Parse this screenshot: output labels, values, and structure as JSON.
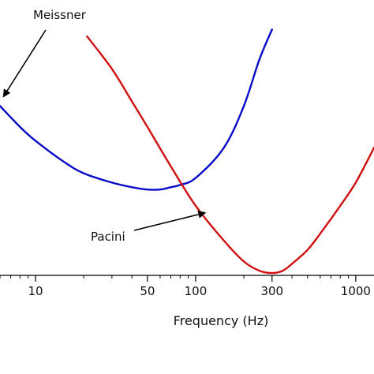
{
  "chart_data": {
    "type": "line",
    "x_scale": "log",
    "xlabel": "Frequency (Hz)",
    "ylabel": "",
    "xlim": [
      6,
      1300
    ],
    "ylim": [
      0,
      1
    ],
    "grid": false,
    "legend": "none",
    "x_ticks": [
      {
        "value": 10,
        "label": "10"
      },
      {
        "value": 50,
        "label": "50"
      },
      {
        "value": 100,
        "label": "100"
      },
      {
        "value": 300,
        "label": "300"
      },
      {
        "value": 1000,
        "label": "1000"
      }
    ],
    "series": [
      {
        "name": "Meissner",
        "color": "#0a0ac8",
        "x": [
          6,
          8,
          10,
          15,
          20,
          30,
          40,
          50,
          60,
          70,
          80,
          100,
          150,
          200,
          250,
          300
        ],
        "y": [
          0.73,
          0.64,
          0.58,
          0.49,
          0.44,
          0.4,
          0.38,
          0.37,
          0.37,
          0.38,
          0.39,
          0.42,
          0.55,
          0.73,
          0.93,
          1.06
        ]
      },
      {
        "name": "Pacini",
        "color": "#d01010",
        "x": [
          21,
          30,
          40,
          50,
          70,
          100,
          150,
          200,
          250,
          300,
          350,
          400,
          500,
          600,
          800,
          1000,
          1300
        ],
        "y": [
          1.03,
          0.89,
          0.75,
          0.64,
          0.47,
          0.3,
          0.15,
          0.06,
          0.02,
          0.01,
          0.02,
          0.05,
          0.11,
          0.18,
          0.3,
          0.4,
          0.55
        ]
      }
    ],
    "annotations": [
      {
        "text": "Meissner",
        "series": "Meissner",
        "x": 6.3,
        "y": 0.77
      },
      {
        "text": "Pacini",
        "series": "Pacini",
        "x": 115,
        "y": 0.27
      }
    ]
  }
}
